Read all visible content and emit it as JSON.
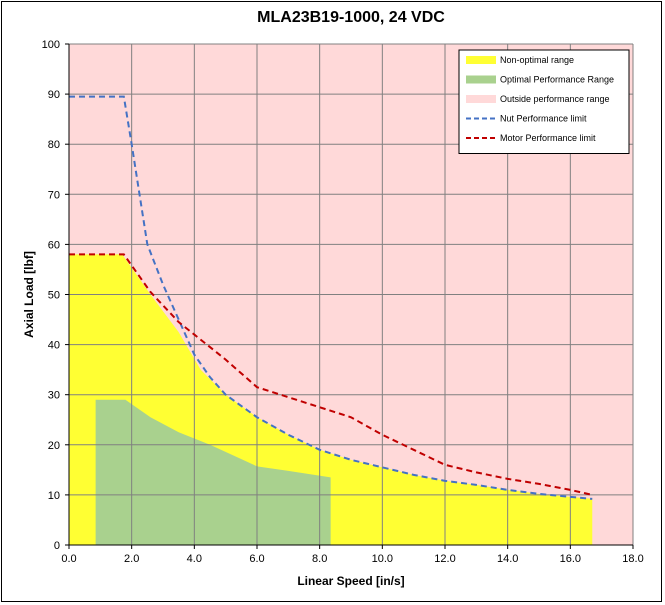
{
  "chart_data": {
    "type": "area",
    "title": "MLA23B19-1000, 24 VDC",
    "xlabel": "Linear Speed [in/s]",
    "ylabel": "Axial Load [lbf]",
    "xlim": [
      0,
      18
    ],
    "ylim": [
      0,
      100
    ],
    "x_ticks": [
      "0.0",
      "2.0",
      "4.0",
      "6.0",
      "8.0",
      "10.0",
      "12.0",
      "14.0",
      "16.0",
      "18.0"
    ],
    "y_ticks": [
      "0",
      "10",
      "20",
      "30",
      "40",
      "50",
      "60",
      "70",
      "80",
      "90",
      "100"
    ],
    "grid": true,
    "legend_position": "top-right",
    "colors": {
      "outside": "#ffd9d9",
      "non_optimal": "#ffff33",
      "optimal": "#a9d18e",
      "nut_limit": "#4472c4",
      "motor_limit": "#c00000",
      "grid": "#808080"
    },
    "series": [
      {
        "name": "Non-optimal range",
        "kind": "area",
        "points": [
          [
            0,
            0
          ],
          [
            0,
            58
          ],
          [
            1.7,
            58
          ],
          [
            2.6,
            50
          ],
          [
            3.5,
            42.5
          ],
          [
            4.2,
            35
          ],
          [
            5.0,
            30
          ],
          [
            6.0,
            25.5
          ],
          [
            7.0,
            22
          ],
          [
            8.0,
            19
          ],
          [
            9.0,
            17
          ],
          [
            10.0,
            15.5
          ],
          [
            11.0,
            14
          ],
          [
            12.0,
            12.8
          ],
          [
            13.0,
            12
          ],
          [
            14.0,
            11
          ],
          [
            15.0,
            10.2
          ],
          [
            16.0,
            9.6
          ],
          [
            16.7,
            9.2
          ],
          [
            16.7,
            0
          ]
        ]
      },
      {
        "name": "Optimal Performance Range",
        "kind": "area",
        "points": [
          [
            0.85,
            0
          ],
          [
            0.85,
            29
          ],
          [
            1.8,
            29
          ],
          [
            2.6,
            25.5
          ],
          [
            3.5,
            22.5
          ],
          [
            4.5,
            20
          ],
          [
            6.0,
            15.7
          ],
          [
            7.0,
            14.8
          ],
          [
            8.35,
            13.5
          ],
          [
            8.35,
            0
          ]
        ]
      },
      {
        "name": "Outside performance range",
        "kind": "area"
      },
      {
        "name": "Nut Performance limit",
        "kind": "line",
        "points": [
          [
            0,
            89.5
          ],
          [
            1.75,
            89.5
          ],
          [
            2.0,
            80
          ],
          [
            2.5,
            60
          ],
          [
            3.0,
            52
          ],
          [
            3.5,
            45
          ],
          [
            4.0,
            38
          ],
          [
            4.5,
            33.5
          ],
          [
            5.0,
            30
          ],
          [
            6.0,
            25.5
          ],
          [
            7.0,
            22
          ],
          [
            8.0,
            19
          ],
          [
            9.0,
            17
          ],
          [
            10.0,
            15.5
          ],
          [
            11.0,
            14
          ],
          [
            12.0,
            12.8
          ],
          [
            13.0,
            12
          ],
          [
            14.0,
            11
          ],
          [
            15.0,
            10.2
          ],
          [
            16.0,
            9.6
          ],
          [
            16.7,
            9.2
          ]
        ]
      },
      {
        "name": "Motor Performance limit",
        "kind": "line",
        "points": [
          [
            0,
            58
          ],
          [
            1.75,
            58
          ],
          [
            2.6,
            50.5
          ],
          [
            3.5,
            44.5
          ],
          [
            4.0,
            42
          ],
          [
            5.0,
            37
          ],
          [
            6.0,
            31.5
          ],
          [
            7.0,
            29.5
          ],
          [
            8.0,
            27.5
          ],
          [
            9.0,
            25.5
          ],
          [
            10.0,
            22
          ],
          [
            11.0,
            19
          ],
          [
            12.0,
            16
          ],
          [
            13.0,
            14.5
          ],
          [
            14.0,
            13.2
          ],
          [
            15.0,
            12.2
          ],
          [
            16.0,
            11
          ],
          [
            16.7,
            10
          ]
        ]
      }
    ]
  }
}
